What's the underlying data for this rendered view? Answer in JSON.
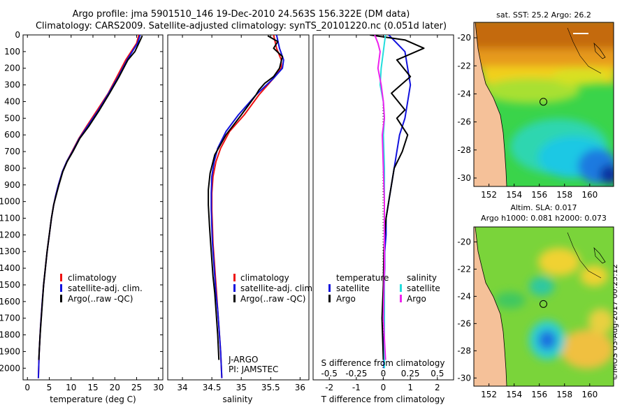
{
  "header": {
    "title_line1": "Argo profile: jma 5901510_146 19-Dec-2010 24.563S 156.322E (DM data)",
    "title_line2": "Climatology: CARS2009. Satellite-adjusted climatology: synTS_20101220.nc (0.051d later)"
  },
  "colors": {
    "climatology": "#ee1111",
    "satellite": "#1111dd",
    "argo": "#000000",
    "sal_satellite": "#22dddd",
    "sal_argo": "#ee22ee",
    "land": "#f5c199"
  },
  "chart_data": [
    {
      "type": "line",
      "name": "temperature-profile",
      "xlabel": "temperature (deg C)",
      "ylabel": "",
      "xlim": [
        -1,
        31
      ],
      "ylim": [
        2070,
        0
      ],
      "xticks": [
        0,
        5,
        10,
        15,
        20,
        25,
        30
      ],
      "yticks": [
        0,
        100,
        200,
        300,
        400,
        500,
        600,
        700,
        800,
        900,
        1000,
        1100,
        1200,
        1300,
        1400,
        1500,
        1600,
        1700,
        1800,
        1900,
        2000
      ],
      "legend": {
        "position": "bottom-right",
        "entries": [
          "climatology",
          "satellite-adj. clim.",
          "Argo(..raw -QC)"
        ]
      },
      "series": [
        {
          "name": "climatology",
          "color": "#ee1111",
          "x": [
            25.5,
            25.0,
            22.5,
            20.5,
            18.5,
            16.0,
            13.5,
            11.8,
            10.2,
            9.0,
            8.0,
            7.1,
            6.5,
            6.0,
            5.5,
            5.0,
            4.5,
            4.1,
            3.7,
            3.4,
            3.0,
            2.7,
            2.5
          ],
          "y": [
            0,
            50,
            150,
            250,
            350,
            450,
            550,
            620,
            700,
            760,
            820,
            900,
            960,
            1020,
            1100,
            1200,
            1300,
            1400,
            1500,
            1600,
            1750,
            1900,
            2060
          ]
        },
        {
          "name": "satellite-adj. clim.",
          "color": "#1111dd",
          "x": [
            25.8,
            25.2,
            22.8,
            20.8,
            18.6,
            16.3,
            13.7,
            11.9,
            10.3,
            9.0,
            8.0,
            7.1,
            6.5,
            6.0,
            5.5,
            5.0,
            4.5,
            4.1,
            3.7,
            3.4,
            3.0,
            2.7,
            2.5
          ],
          "y": [
            0,
            50,
            150,
            250,
            350,
            450,
            550,
            620,
            700,
            760,
            820,
            900,
            960,
            1020,
            1100,
            1200,
            1300,
            1400,
            1500,
            1600,
            1750,
            1900,
            2060
          ]
        },
        {
          "name": "Argo(..raw -QC)",
          "color": "#000000",
          "x": [
            26.3,
            25.5,
            24.6,
            23.0,
            21.0,
            18.8,
            16.5,
            14.0,
            12.0,
            10.4,
            9.1,
            8.1,
            7.2,
            6.6,
            6.0,
            5.5,
            5.0,
            4.5,
            4.1,
            3.7,
            3.3,
            2.9,
            2.6
          ],
          "y": [
            5,
            50,
            100,
            150,
            250,
            350,
            450,
            550,
            620,
            700,
            760,
            820,
            900,
            960,
            1020,
            1100,
            1200,
            1300,
            1400,
            1500,
            1650,
            1800,
            1950
          ]
        }
      ]
    },
    {
      "type": "line",
      "name": "salinity-profile",
      "xlabel": "salinity",
      "xlim": [
        33.75,
        36.15
      ],
      "ylim": [
        2070,
        0
      ],
      "xticks": [
        34,
        34.5,
        35,
        35.5,
        36
      ],
      "legend": {
        "position": "bottom-right",
        "entries": [
          "climatology",
          "satellite-adj. clim.",
          "Argo(..raw -QC)"
        ]
      },
      "annotation": [
        "J-ARGO",
        "PI: JAMSTEC"
      ],
      "series": [
        {
          "name": "climatology",
          "color": "#ee1111",
          "x": [
            35.55,
            35.6,
            35.68,
            35.68,
            35.55,
            35.3,
            35.05,
            34.8,
            34.65,
            34.57,
            34.52,
            34.5,
            34.5,
            34.51,
            34.52,
            34.54,
            34.56,
            34.58,
            34.6,
            34.62,
            34.65,
            34.67
          ],
          "y": [
            0,
            80,
            150,
            200,
            260,
            360,
            480,
            580,
            680,
            760,
            850,
            950,
            1050,
            1150,
            1250,
            1350,
            1450,
            1550,
            1650,
            1750,
            1900,
            2060
          ]
        },
        {
          "name": "satellite-adj. clim.",
          "color": "#1111dd",
          "x": [
            35.6,
            35.65,
            35.72,
            35.7,
            35.55,
            35.25,
            34.95,
            34.74,
            34.6,
            34.54,
            34.5,
            34.49,
            34.49,
            34.5,
            34.51,
            34.53,
            34.55,
            34.57,
            34.6,
            34.62,
            34.65,
            34.67
          ],
          "y": [
            0,
            80,
            150,
            200,
            260,
            360,
            480,
            580,
            680,
            760,
            850,
            950,
            1050,
            1150,
            1250,
            1350,
            1450,
            1550,
            1650,
            1750,
            1900,
            2060
          ]
        },
        {
          "name": "Argo(..raw -QC)",
          "color": "#000000",
          "x": [
            35.45,
            35.62,
            35.55,
            35.7,
            35.65,
            35.55,
            35.4,
            35.3,
            35.25,
            35.0,
            34.74,
            34.55,
            34.47,
            34.44,
            34.44,
            34.46,
            34.48,
            34.5,
            34.52,
            34.55,
            34.57,
            34.6,
            34.62
          ],
          "y": [
            5,
            40,
            80,
            130,
            200,
            250,
            290,
            330,
            360,
            480,
            600,
            720,
            830,
            930,
            1020,
            1150,
            1250,
            1350,
            1450,
            1550,
            1650,
            1800,
            1950
          ]
        }
      ]
    },
    {
      "type": "line",
      "name": "difference-profile",
      "xlabel": "T difference from climatology",
      "title": "S difference from climatology",
      "xlim_T": [
        -2.6,
        2.6
      ],
      "xticks_T": [
        -2,
        -1,
        0,
        1,
        2
      ],
      "xlim_S": [
        -0.65,
        0.65
      ],
      "xticks_S": [
        -0.5,
        -0.25,
        0,
        0.25,
        0.5
      ],
      "ylim": [
        2070,
        0
      ],
      "legend": {
        "position": "bottom-right",
        "headings": [
          "temperature",
          "salinity"
        ],
        "entries": [
          "satellite",
          "Argo",
          "satellite",
          "Argo"
        ]
      },
      "series": [
        {
          "name": "satellite",
          "group": "temperature",
          "color": "#1111dd",
          "x": [
            0.2,
            0.5,
            0.8,
            0.9,
            1.0,
            0.9,
            0.8,
            0.6,
            0.5,
            0.4,
            0.3,
            0.2,
            0.1,
            0.1,
            0.05,
            0.05,
            0.03,
            0.03,
            0.02,
            0.02
          ],
          "y": [
            0,
            50,
            100,
            200,
            300,
            400,
            500,
            600,
            700,
            800,
            900,
            1000,
            1100,
            1200,
            1300,
            1400,
            1500,
            1600,
            1800,
            2000
          ]
        },
        {
          "name": "Argo",
          "group": "temperature",
          "color": "#000000",
          "x": [
            -0.5,
            0.8,
            1.5,
            0.5,
            1.0,
            0.3,
            0.8,
            0.5,
            0.9,
            0.7,
            0.4,
            0.3,
            0.2,
            0.1,
            0.05,
            0.02,
            0.01,
            0.0,
            -0.05,
            0.0
          ],
          "y": [
            0,
            30,
            80,
            150,
            250,
            350,
            450,
            500,
            600,
            700,
            800,
            900,
            1000,
            1100,
            1200,
            1300,
            1400,
            1500,
            1700,
            1950
          ]
        },
        {
          "name": "satellite",
          "group": "salinity",
          "color": "#22dddd",
          "x": [
            0.02,
            0.01,
            0.0,
            -0.02,
            -0.03,
            0.0,
            0.01,
            0.0,
            0.01,
            0.01,
            0.01,
            0.01,
            0.01,
            0.01
          ],
          "y": [
            0,
            50,
            100,
            200,
            300,
            400,
            500,
            600,
            800,
            1000,
            1200,
            1400,
            1700,
            2000
          ]
        },
        {
          "name": "Argo",
          "group": "salinity",
          "color": "#ee22ee",
          "x": [
            -0.08,
            -0.05,
            -0.03,
            -0.05,
            -0.02,
            0.0,
            0.01,
            -0.01,
            0.0,
            0.01,
            0.01,
            0.01,
            0.0,
            0.02
          ],
          "y": [
            0,
            50,
            100,
            200,
            300,
            400,
            500,
            600,
            800,
            1000,
            1200,
            1400,
            1700,
            1950
          ]
        }
      ]
    },
    {
      "type": "heatmap",
      "name": "sst-map",
      "title": "sat. SST: 25.2 Argo: 26.2",
      "xlim": [
        150.8,
        161.9
      ],
      "ylim": [
        -30.6,
        -18.9
      ],
      "xticks": [
        152,
        154,
        156,
        158,
        160
      ],
      "yticks": [
        -20,
        -22,
        -24,
        -26,
        -28,
        -30
      ],
      "marker": {
        "lon": 156.322,
        "lat": -24.563
      }
    },
    {
      "type": "heatmap",
      "name": "sla-map",
      "title": "Altim. SLA: 0.017",
      "subtitle": "Argo h1000: 0.081 h2000: 0.073",
      "xlim": [
        150.8,
        161.9
      ],
      "ylim": [
        -30.6,
        -18.9
      ],
      "xticks": [
        152,
        154,
        156,
        158,
        160
      ],
      "yticks": [
        -20,
        -22,
        -24,
        -26,
        -28,
        -30
      ],
      "marker": {
        "lon": 156.322,
        "lat": -24.563
      }
    }
  ],
  "footer": {
    "credit": "©IMOS 03-Aug-2017 00:25:12"
  }
}
